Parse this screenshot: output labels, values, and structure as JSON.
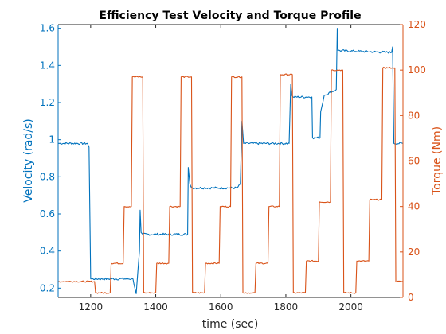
{
  "chart_data": {
    "type": "line",
    "title": "Efficiency Test Velocity and Torque Profile",
    "xlabel": "time (sec)",
    "ylabel_left": "Velocity (rad/s)",
    "ylabel_right": "Torque (Nm)",
    "xlim": [
      1100,
      2160
    ],
    "ylim_left": [
      0.15,
      1.62
    ],
    "ylim_right": [
      0,
      120
    ],
    "x_ticks": [
      1200,
      1400,
      1600,
      1800,
      2000
    ],
    "y_left_ticks": [
      0.2,
      0.4,
      0.6,
      0.8,
      1,
      1.2,
      1.4,
      1.6
    ],
    "y_right_ticks": [
      0,
      20,
      40,
      60,
      80,
      100,
      120
    ],
    "grid": false,
    "colors": {
      "velocity": "#0072BD",
      "torque": "#D95319",
      "axes": "#262626"
    },
    "series": [
      {
        "axis": "left",
        "x": [
          1100,
          1190,
          1195,
          1200,
          1330,
          1340,
          1350,
          1352,
          1355,
          1360,
          1498,
          1500,
          1505,
          1510,
          1650,
          1660,
          1665,
          1670,
          1810,
          1815,
          1818,
          1822,
          1880,
          1882,
          1905,
          1907,
          1918,
          1920,
          1955,
          1958,
          1960,
          2125,
          2128,
          2132,
          2160
        ],
        "y": [
          0.98,
          0.98,
          0.96,
          0.25,
          0.25,
          0.17,
          0.4,
          0.62,
          0.5,
          0.49,
          0.49,
          0.85,
          0.76,
          0.74,
          0.74,
          0.76,
          1.1,
          0.98,
          0.98,
          1.3,
          1.24,
          1.23,
          1.23,
          1.01,
          1.01,
          1.15,
          1.24,
          1.24,
          1.27,
          1.6,
          1.48,
          1.47,
          1.5,
          0.98,
          0.98
        ]
      },
      {
        "axis": "right",
        "x": [
          1100,
          1212,
          1215,
          1260,
          1263,
          1300,
          1303,
          1325,
          1328,
          1360,
          1363,
          1400,
          1403,
          1440,
          1443,
          1475,
          1478,
          1510,
          1513,
          1550,
          1553,
          1595,
          1598,
          1630,
          1633,
          1665,
          1668,
          1705,
          1708,
          1745,
          1748,
          1780,
          1783,
          1820,
          1823,
          1860,
          1863,
          1900,
          1903,
          1937,
          1940,
          1975,
          1978,
          2015,
          2018,
          2055,
          2058,
          2095,
          2098,
          2135,
          2138,
          2160
        ],
        "y": [
          7,
          7,
          2,
          2,
          15,
          15,
          40,
          40,
          97,
          97,
          2,
          2,
          15,
          15,
          40,
          40,
          97,
          97,
          2,
          2,
          15,
          15,
          40,
          40,
          97,
          97,
          2,
          2,
          15,
          15,
          40,
          40,
          98,
          98,
          2,
          2,
          16,
          16,
          42,
          42,
          100,
          100,
          2,
          2,
          16,
          16,
          43,
          43,
          101,
          101,
          7,
          7
        ]
      }
    ]
  }
}
